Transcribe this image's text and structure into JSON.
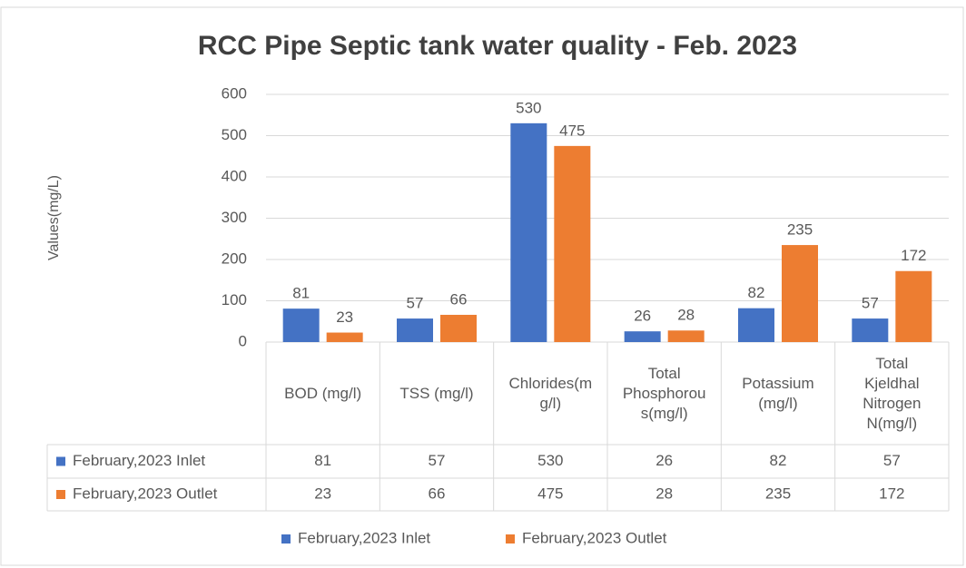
{
  "chart_data": {
    "type": "bar",
    "title": "RCC Pipe Septic tank water quality - Feb. 2023",
    "y_label": "Values(mg/L)",
    "categories": [
      "BOD (mg/l)",
      "TSS (mg/l)",
      "Chlorides(mg/l)",
      "Total Phosphorous(mg/l)",
      "Potassium (mg/l)",
      "Total Kjeldhal Nitrogen N(mg/l)"
    ],
    "series": [
      {
        "name": "February,2023 Inlet",
        "color": "#4472c4",
        "values": [
          81,
          57,
          530,
          26,
          82,
          57
        ]
      },
      {
        "name": "February,2023 Outlet",
        "color": "#ed7d31",
        "values": [
          23,
          66,
          475,
          28,
          235,
          172
        ]
      }
    ],
    "ylim": [
      0,
      600
    ],
    "yticks": [
      0,
      100,
      200,
      300,
      400,
      500,
      600
    ],
    "grid": true,
    "data_table": true,
    "legend": "bottom"
  }
}
